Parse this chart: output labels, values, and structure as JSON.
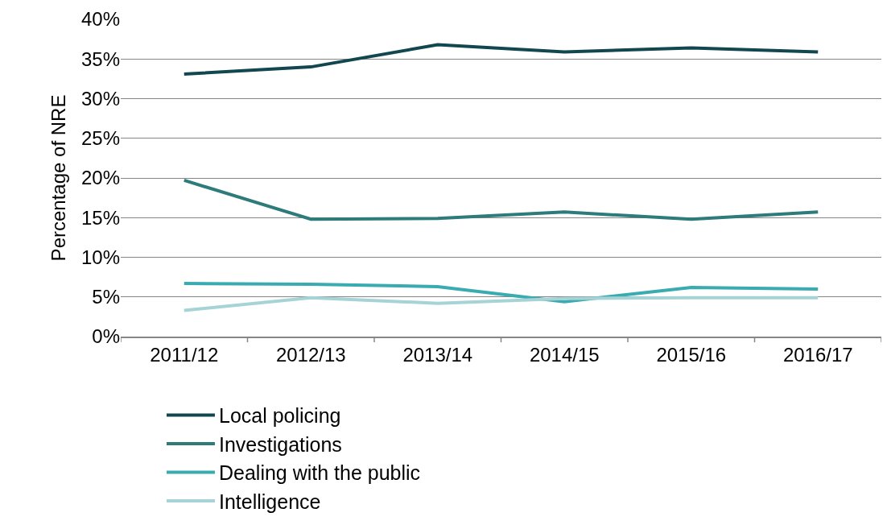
{
  "chart_data": {
    "type": "line",
    "ylabel": "Percentage of NRE",
    "categories": [
      "2011/12",
      "2012/13",
      "2013/14",
      "2014/15",
      "2015/16",
      "2016/17"
    ],
    "series": [
      {
        "name": "Local policing",
        "color": "#12474f",
        "values": [
          33.1,
          34.0,
          36.8,
          35.9,
          36.4,
          35.9
        ]
      },
      {
        "name": "Investigations",
        "color": "#2e7b7b",
        "values": [
          19.7,
          14.8,
          14.9,
          15.7,
          14.8,
          15.7
        ]
      },
      {
        "name": "Dealing with the public",
        "color": "#3aabb0",
        "values": [
          6.7,
          6.6,
          6.3,
          4.4,
          6.2,
          6.0
        ]
      },
      {
        "name": "Intelligence",
        "color": "#a6d4d6",
        "values": [
          3.3,
          4.9,
          4.2,
          4.8,
          4.9,
          4.9
        ]
      }
    ],
    "ylim": [
      0,
      40
    ],
    "yticks": [
      {
        "value": 0,
        "label": "0%"
      },
      {
        "value": 5,
        "label": "5%"
      },
      {
        "value": 10,
        "label": "10%"
      },
      {
        "value": 15,
        "label": "15%"
      },
      {
        "value": 20,
        "label": "20%"
      },
      {
        "value": 25,
        "label": "25%"
      },
      {
        "value": 30,
        "label": "30%"
      },
      {
        "value": 35,
        "label": "35%"
      },
      {
        "value": 40,
        "label": "40%"
      }
    ],
    "grid": "y",
    "legend": "bottom",
    "marker": "none",
    "line_style": "solid"
  }
}
